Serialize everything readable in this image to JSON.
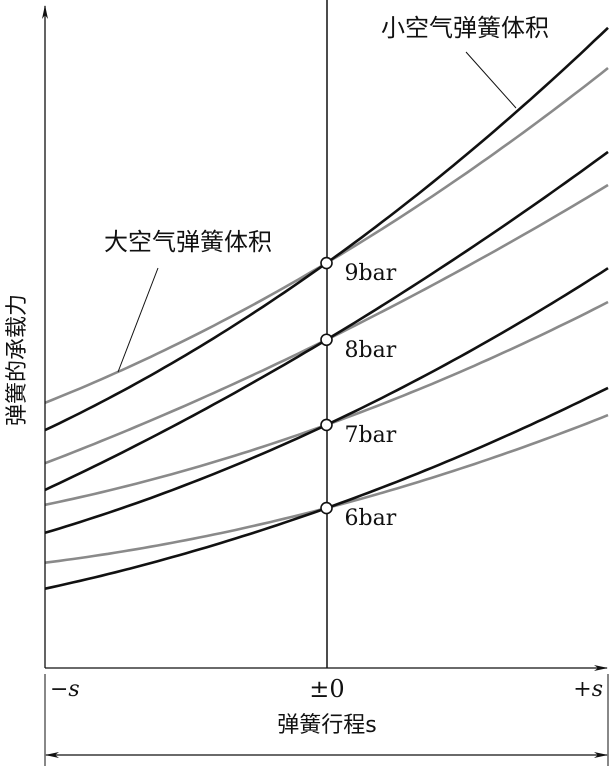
{
  "chart_data": {
    "type": "line",
    "title": "",
    "xlabel": "弹簧行程s",
    "ylabel": "弹簧的承载力",
    "x_ticks": [
      "−s",
      "±0",
      "+s"
    ],
    "xlim": [
      -1,
      1
    ],
    "ylim": [
      0,
      10.2
    ],
    "grid": false,
    "x": [
      -1,
      0,
      1
    ],
    "annotations": {
      "small_volume": "小空气弹簧体积",
      "large_volume": "大空气弹簧体积"
    },
    "colors": {
      "small_volume": "#111111",
      "large_volume": "#8a8a8a"
    },
    "series": [
      {
        "pressure": "9bar",
        "small_volume": [
          3.66,
          6.23,
          9.85
        ],
        "large_volume": [
          4.08,
          6.23,
          9.23
        ]
      },
      {
        "pressure": "8bar",
        "small_volume": [
          2.74,
          5.05,
          7.94
        ],
        "large_volume": [
          3.15,
          5.05,
          7.43
        ]
      },
      {
        "pressure": "7bar",
        "small_volume": [
          2.08,
          3.74,
          6.15
        ],
        "large_volume": [
          2.51,
          3.74,
          5.63
        ]
      },
      {
        "pressure": "6bar",
        "small_volume": [
          1.22,
          2.46,
          4.31
        ],
        "large_volume": [
          1.62,
          2.46,
          3.89
        ]
      }
    ]
  }
}
